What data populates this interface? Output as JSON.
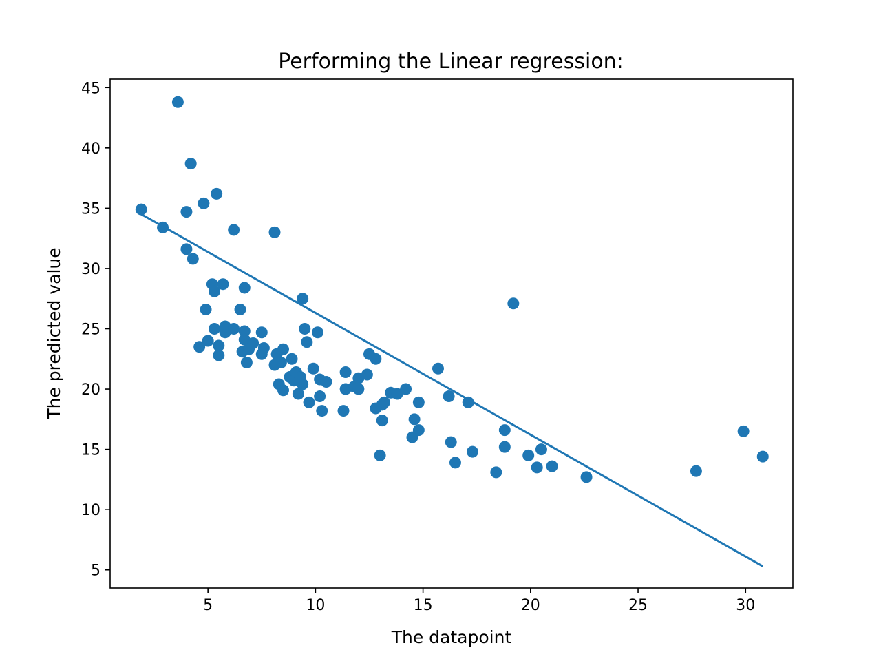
{
  "chart_data": {
    "type": "scatter",
    "title": "Performing the Linear regression:",
    "xlabel": "The datapoint",
    "ylabel": "The predicted value",
    "xlim": [
      0.45,
      32.2
    ],
    "ylim": [
      3.5,
      45.7
    ],
    "xticks": [
      5,
      10,
      15,
      20,
      25,
      30
    ],
    "yticks": [
      5,
      10,
      15,
      20,
      25,
      30,
      35,
      40,
      45
    ],
    "grid": false,
    "legend": "none",
    "color": "#1f77b4",
    "series": [
      {
        "kind": "scatter",
        "points": [
          [
            1.9,
            34.9
          ],
          [
            2.9,
            33.4
          ],
          [
            3.6,
            43.8
          ],
          [
            4.0,
            31.6
          ],
          [
            4.0,
            34.7
          ],
          [
            4.2,
            38.7
          ],
          [
            4.3,
            30.8
          ],
          [
            4.6,
            23.5
          ],
          [
            4.8,
            35.4
          ],
          [
            4.9,
            26.6
          ],
          [
            5.0,
            24.0
          ],
          [
            5.2,
            28.7
          ],
          [
            5.3,
            28.1
          ],
          [
            5.3,
            25.0
          ],
          [
            5.4,
            36.2
          ],
          [
            5.5,
            23.6
          ],
          [
            5.5,
            22.8
          ],
          [
            5.7,
            28.7
          ],
          [
            5.8,
            24.7
          ],
          [
            5.8,
            25.2
          ],
          [
            6.2,
            33.2
          ],
          [
            6.2,
            25.0
          ],
          [
            6.5,
            26.6
          ],
          [
            6.6,
            23.1
          ],
          [
            6.7,
            28.4
          ],
          [
            6.7,
            24.8
          ],
          [
            6.7,
            24.1
          ],
          [
            6.8,
            22.2
          ],
          [
            6.9,
            23.3
          ],
          [
            7.1,
            23.8
          ],
          [
            7.5,
            24.7
          ],
          [
            7.5,
            22.9
          ],
          [
            7.6,
            23.4
          ],
          [
            8.1,
            33.0
          ],
          [
            8.1,
            22.0
          ],
          [
            8.2,
            22.9
          ],
          [
            8.3,
            20.4
          ],
          [
            8.4,
            22.2
          ],
          [
            8.5,
            23.3
          ],
          [
            8.5,
            19.9
          ],
          [
            8.8,
            21.0
          ],
          [
            8.9,
            22.5
          ],
          [
            9.0,
            20.7
          ],
          [
            9.1,
            21.4
          ],
          [
            9.2,
            19.6
          ],
          [
            9.3,
            21.0
          ],
          [
            9.4,
            20.4
          ],
          [
            9.4,
            27.5
          ],
          [
            9.5,
            25.0
          ],
          [
            9.6,
            23.9
          ],
          [
            9.7,
            18.9
          ],
          [
            9.9,
            21.7
          ],
          [
            10.1,
            24.7
          ],
          [
            10.2,
            20.8
          ],
          [
            10.2,
            19.4
          ],
          [
            10.3,
            18.2
          ],
          [
            10.5,
            20.6
          ],
          [
            11.3,
            18.2
          ],
          [
            11.4,
            21.4
          ],
          [
            11.4,
            20.0
          ],
          [
            11.8,
            20.2
          ],
          [
            12.0,
            20.0
          ],
          [
            12.0,
            20.9
          ],
          [
            12.4,
            21.2
          ],
          [
            12.5,
            22.9
          ],
          [
            12.8,
            22.5
          ],
          [
            12.8,
            18.4
          ],
          [
            13.0,
            14.5
          ],
          [
            13.1,
            17.4
          ],
          [
            13.1,
            18.7
          ],
          [
            13.2,
            18.9
          ],
          [
            13.5,
            19.7
          ],
          [
            13.8,
            19.6
          ],
          [
            14.2,
            20.0
          ],
          [
            14.5,
            16.0
          ],
          [
            14.6,
            17.5
          ],
          [
            14.8,
            18.9
          ],
          [
            14.8,
            16.6
          ],
          [
            15.7,
            21.7
          ],
          [
            16.2,
            19.4
          ],
          [
            16.3,
            15.6
          ],
          [
            16.5,
            13.9
          ],
          [
            17.1,
            18.9
          ],
          [
            17.3,
            14.8
          ],
          [
            18.4,
            13.1
          ],
          [
            18.8,
            15.2
          ],
          [
            18.8,
            16.6
          ],
          [
            19.2,
            27.1
          ],
          [
            19.9,
            14.5
          ],
          [
            20.3,
            13.5
          ],
          [
            20.5,
            15.0
          ],
          [
            21.0,
            13.6
          ],
          [
            22.6,
            12.7
          ],
          [
            27.7,
            13.2
          ],
          [
            29.9,
            16.5
          ],
          [
            30.8,
            14.4
          ]
        ]
      },
      {
        "kind": "line",
        "points": [
          [
            1.9,
            34.5
          ],
          [
            30.8,
            5.3
          ]
        ]
      }
    ]
  }
}
